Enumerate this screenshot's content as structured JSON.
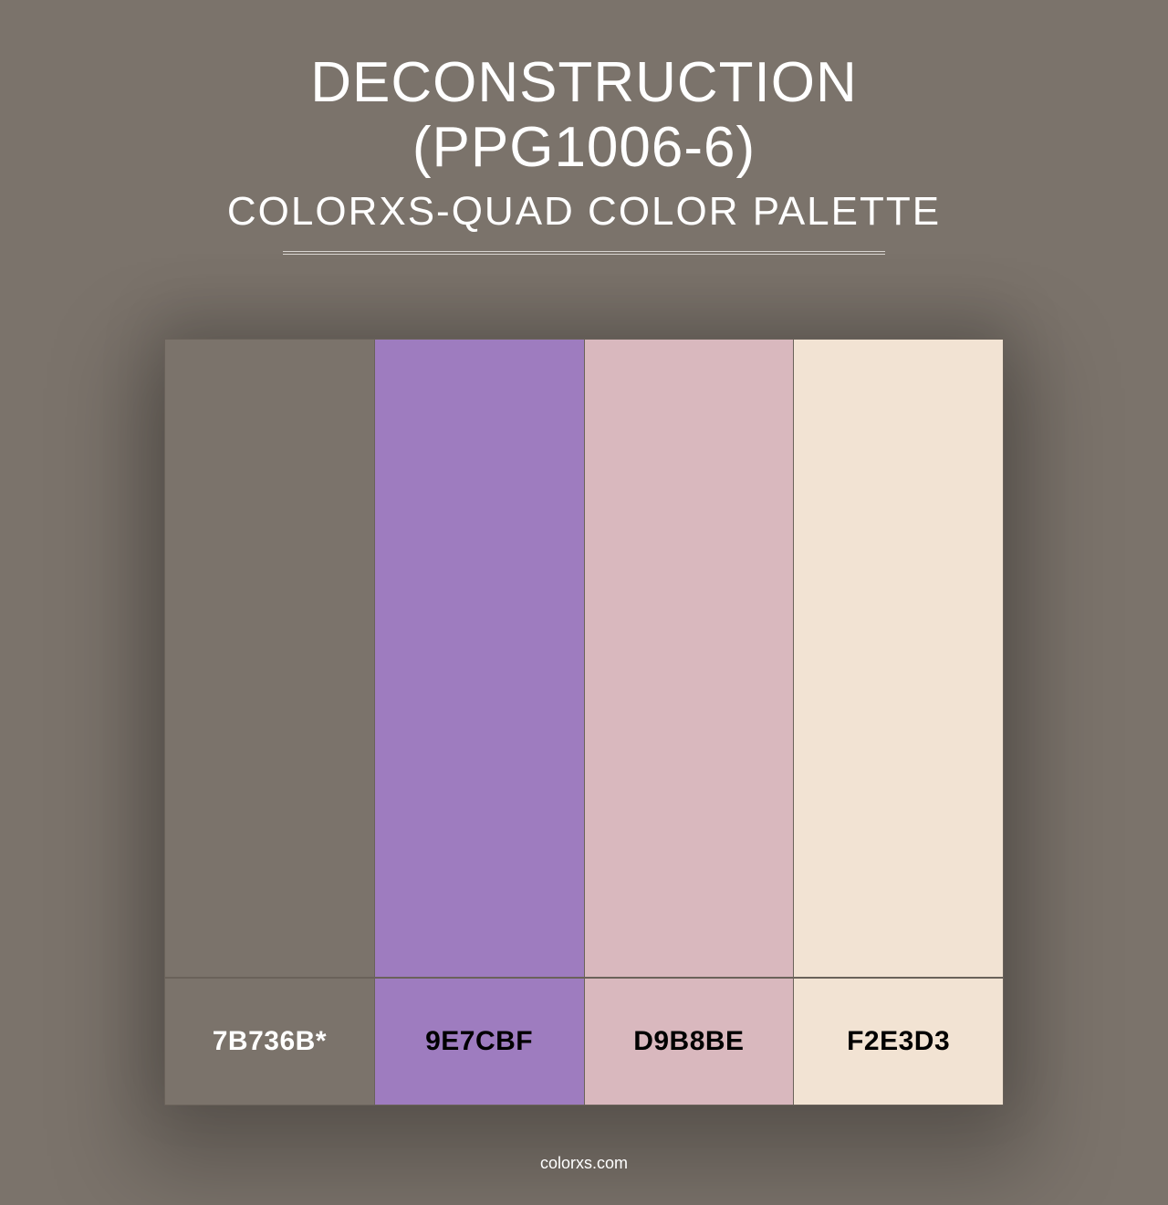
{
  "header": {
    "title": "DECONSTRUCTION (PPG1006-6)",
    "subtitle": "COLORXS-QUAD COLOR PALETTE"
  },
  "palette": {
    "type": "color-swatch-grid",
    "background_color": "#7b736b",
    "card_shadow_color": "rgba(0,0,0,0.25)",
    "divider_color": "#d8d4d0",
    "border_color": "#6a625a",
    "label_fontsize": 30,
    "swatches": [
      {
        "hex": "#7b736b",
        "label": "7B736B*",
        "label_color": "#ffffff"
      },
      {
        "hex": "#9e7cbf",
        "label": "9E7CBF",
        "label_color": "#000000"
      },
      {
        "hex": "#d9b8be",
        "label": "D9B8BE",
        "label_color": "#000000"
      },
      {
        "hex": "#f2e3d3",
        "label": "F2E3D3",
        "label_color": "#000000"
      }
    ]
  },
  "footer": {
    "text": "colorxs.com"
  }
}
